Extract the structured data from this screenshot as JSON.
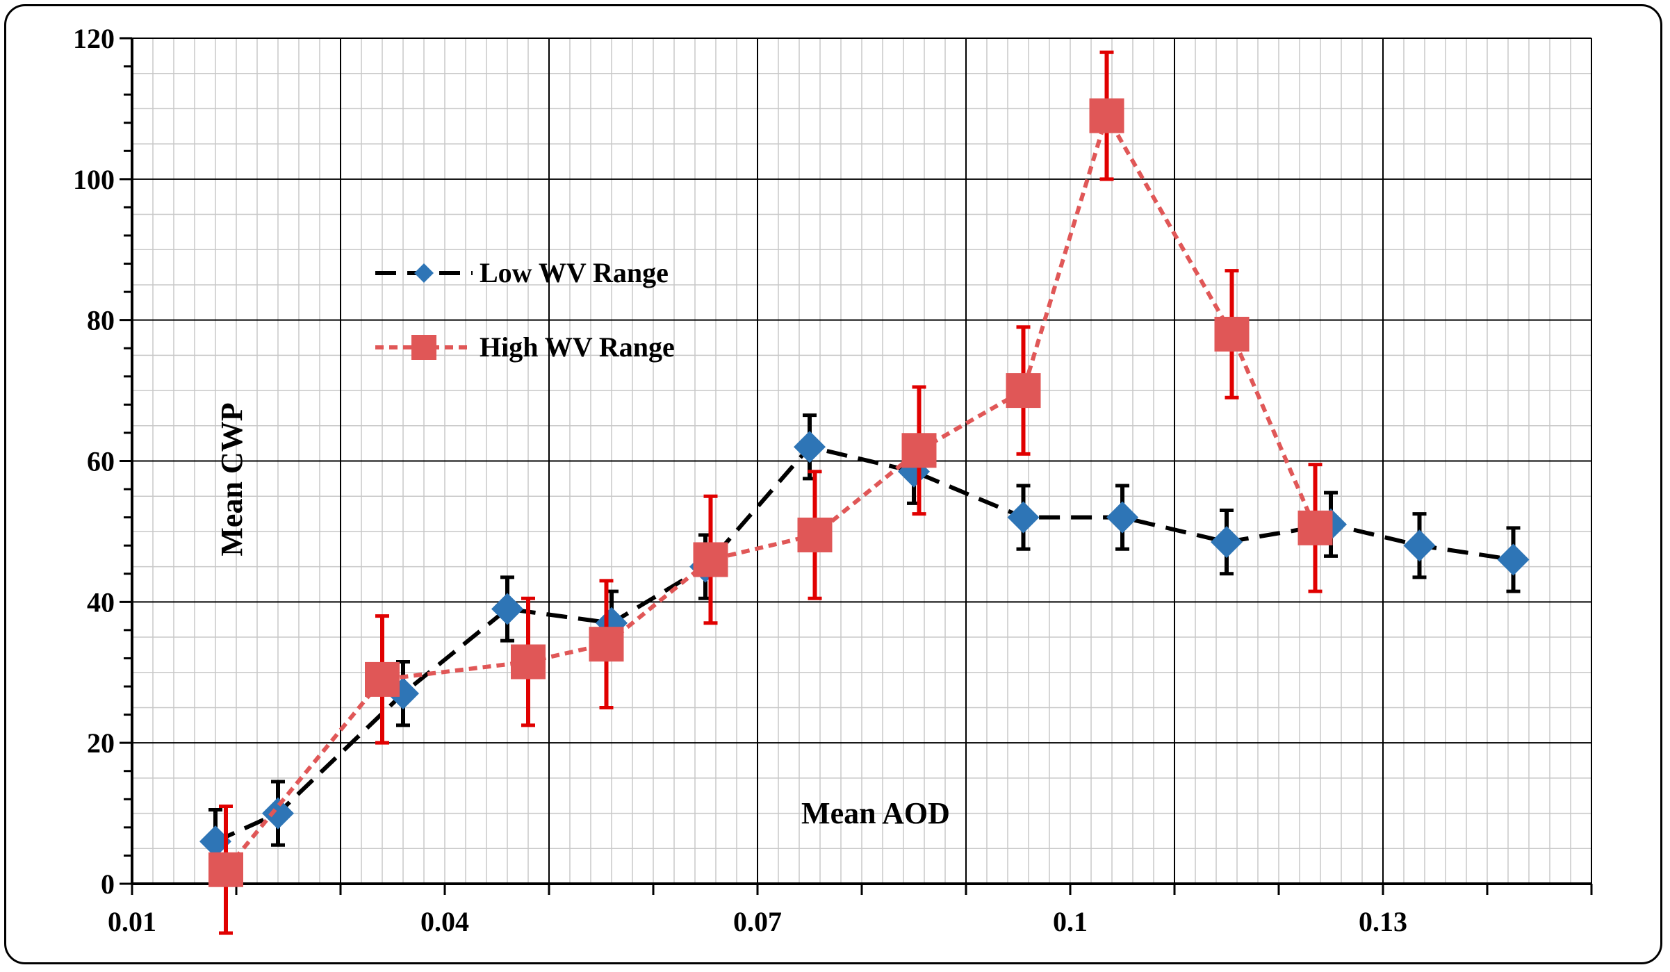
{
  "chart_data": {
    "type": "scatter",
    "title": "",
    "xlabel": "Mean AOD",
    "ylabel": "Mean CWP",
    "xlim": [
      0.01,
      0.15
    ],
    "ylim": [
      0,
      120
    ],
    "x_ticks": [
      "0.01",
      "0.04",
      "0.07",
      "0.1",
      "0.13"
    ],
    "y_ticks": [
      "0",
      "20",
      "40",
      "60",
      "80",
      "100",
      "120"
    ],
    "grid": true,
    "legend_position": "upper-left",
    "series": [
      {
        "name": "Low WV Range",
        "color": "#2e75b6",
        "error_color": "#000000",
        "line_color": "#000000",
        "marker": "diamond",
        "line_style": "dashed",
        "x": [
          0.018,
          0.024,
          0.036,
          0.046,
          0.056,
          0.065,
          0.075,
          0.085,
          0.0955,
          0.105,
          0.115,
          0.125,
          0.1335,
          0.1425
        ],
        "y": [
          6,
          10,
          27,
          39,
          37,
          45,
          62,
          58.5,
          52,
          52,
          48.5,
          51,
          48,
          46
        ],
        "error": [
          4.5,
          4.5,
          4.5,
          4.5,
          4.5,
          4.5,
          4.5,
          4.5,
          4.5,
          4.5,
          4.5,
          4.5,
          4.5,
          4.5
        ]
      },
      {
        "name": "High WV Range",
        "color": "#e05757",
        "error_color": "#e00000",
        "line_color": "#e05757",
        "marker": "square",
        "line_style": "dotted",
        "x": [
          0.019,
          0.034,
          0.048,
          0.0555,
          0.0655,
          0.0755,
          0.0855,
          0.0955,
          0.1035,
          0.1155,
          0.1235
        ],
        "y": [
          2,
          29,
          31.5,
          34,
          46,
          49.5,
          61.5,
          70,
          109,
          78,
          50.5
        ],
        "error": [
          9,
          9,
          9,
          9,
          9,
          9,
          9,
          9,
          9,
          9,
          9
        ]
      }
    ]
  }
}
